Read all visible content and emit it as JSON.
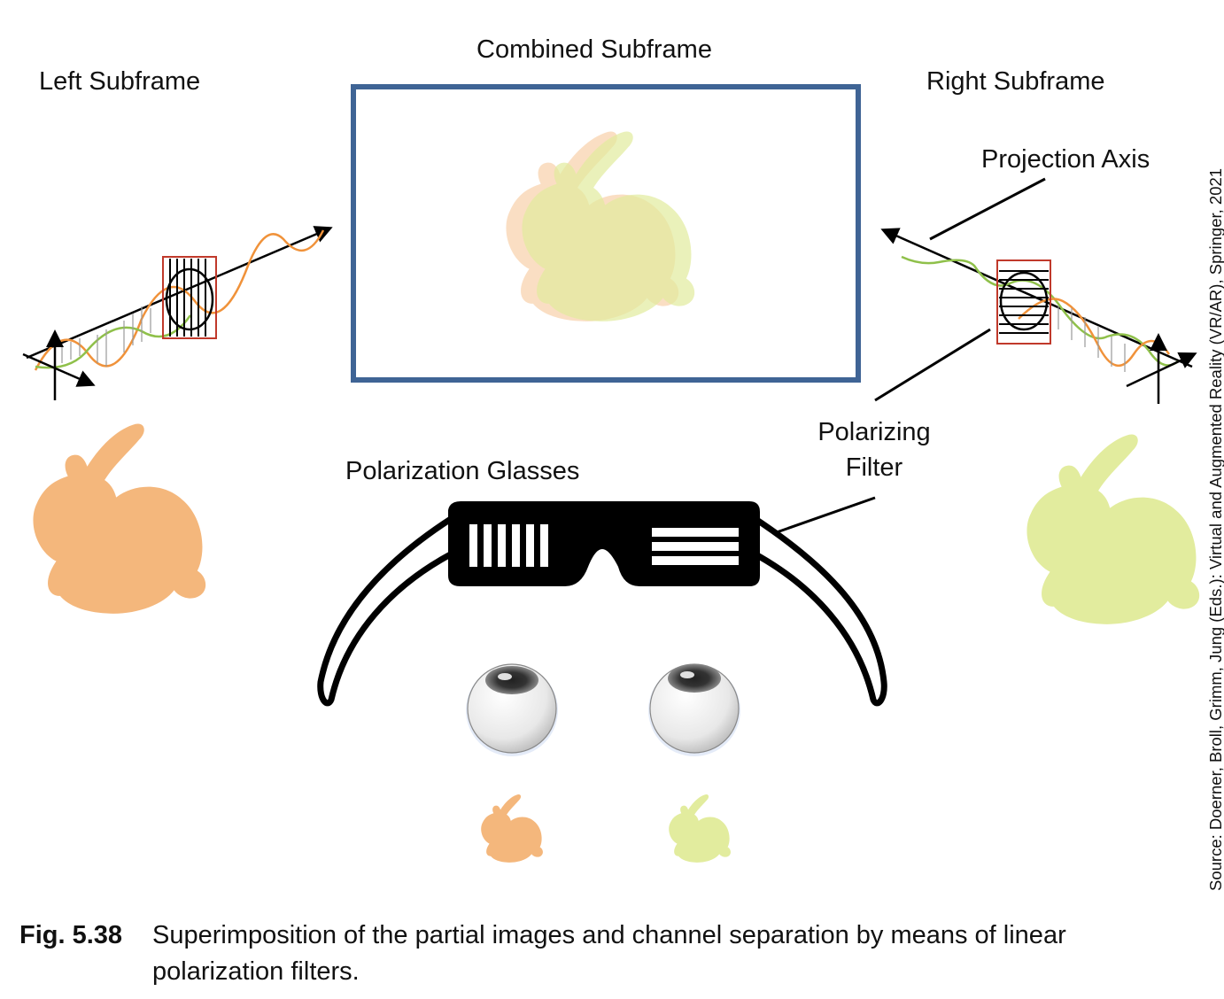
{
  "labels": {
    "combined": "Combined Subframe",
    "left": "Left Subframe",
    "right": "Right Subframe",
    "projection_axis": "Projection Axis",
    "polarizing_filter_line1": "Polarizing",
    "polarizing_filter_line2": "Filter",
    "glasses": "Polarization Glasses"
  },
  "caption": {
    "number": "Fig. 5.38",
    "text": "Superimposition of the partial images and channel separation by means of linear polarization filters."
  },
  "source": "Source: Doerner, Broll, Grimm, Jung (Eds.): Virtual and Augmented Reality (VR/AR), Springer, 2021",
  "colors": {
    "frame": "#3f6495",
    "bunny_left": "#f4b77c",
    "bunny_right": "#e2ec9e",
    "wave_orange": "#f0923a",
    "wave_green": "#8fc04a",
    "filter_red": "#c0392b"
  }
}
